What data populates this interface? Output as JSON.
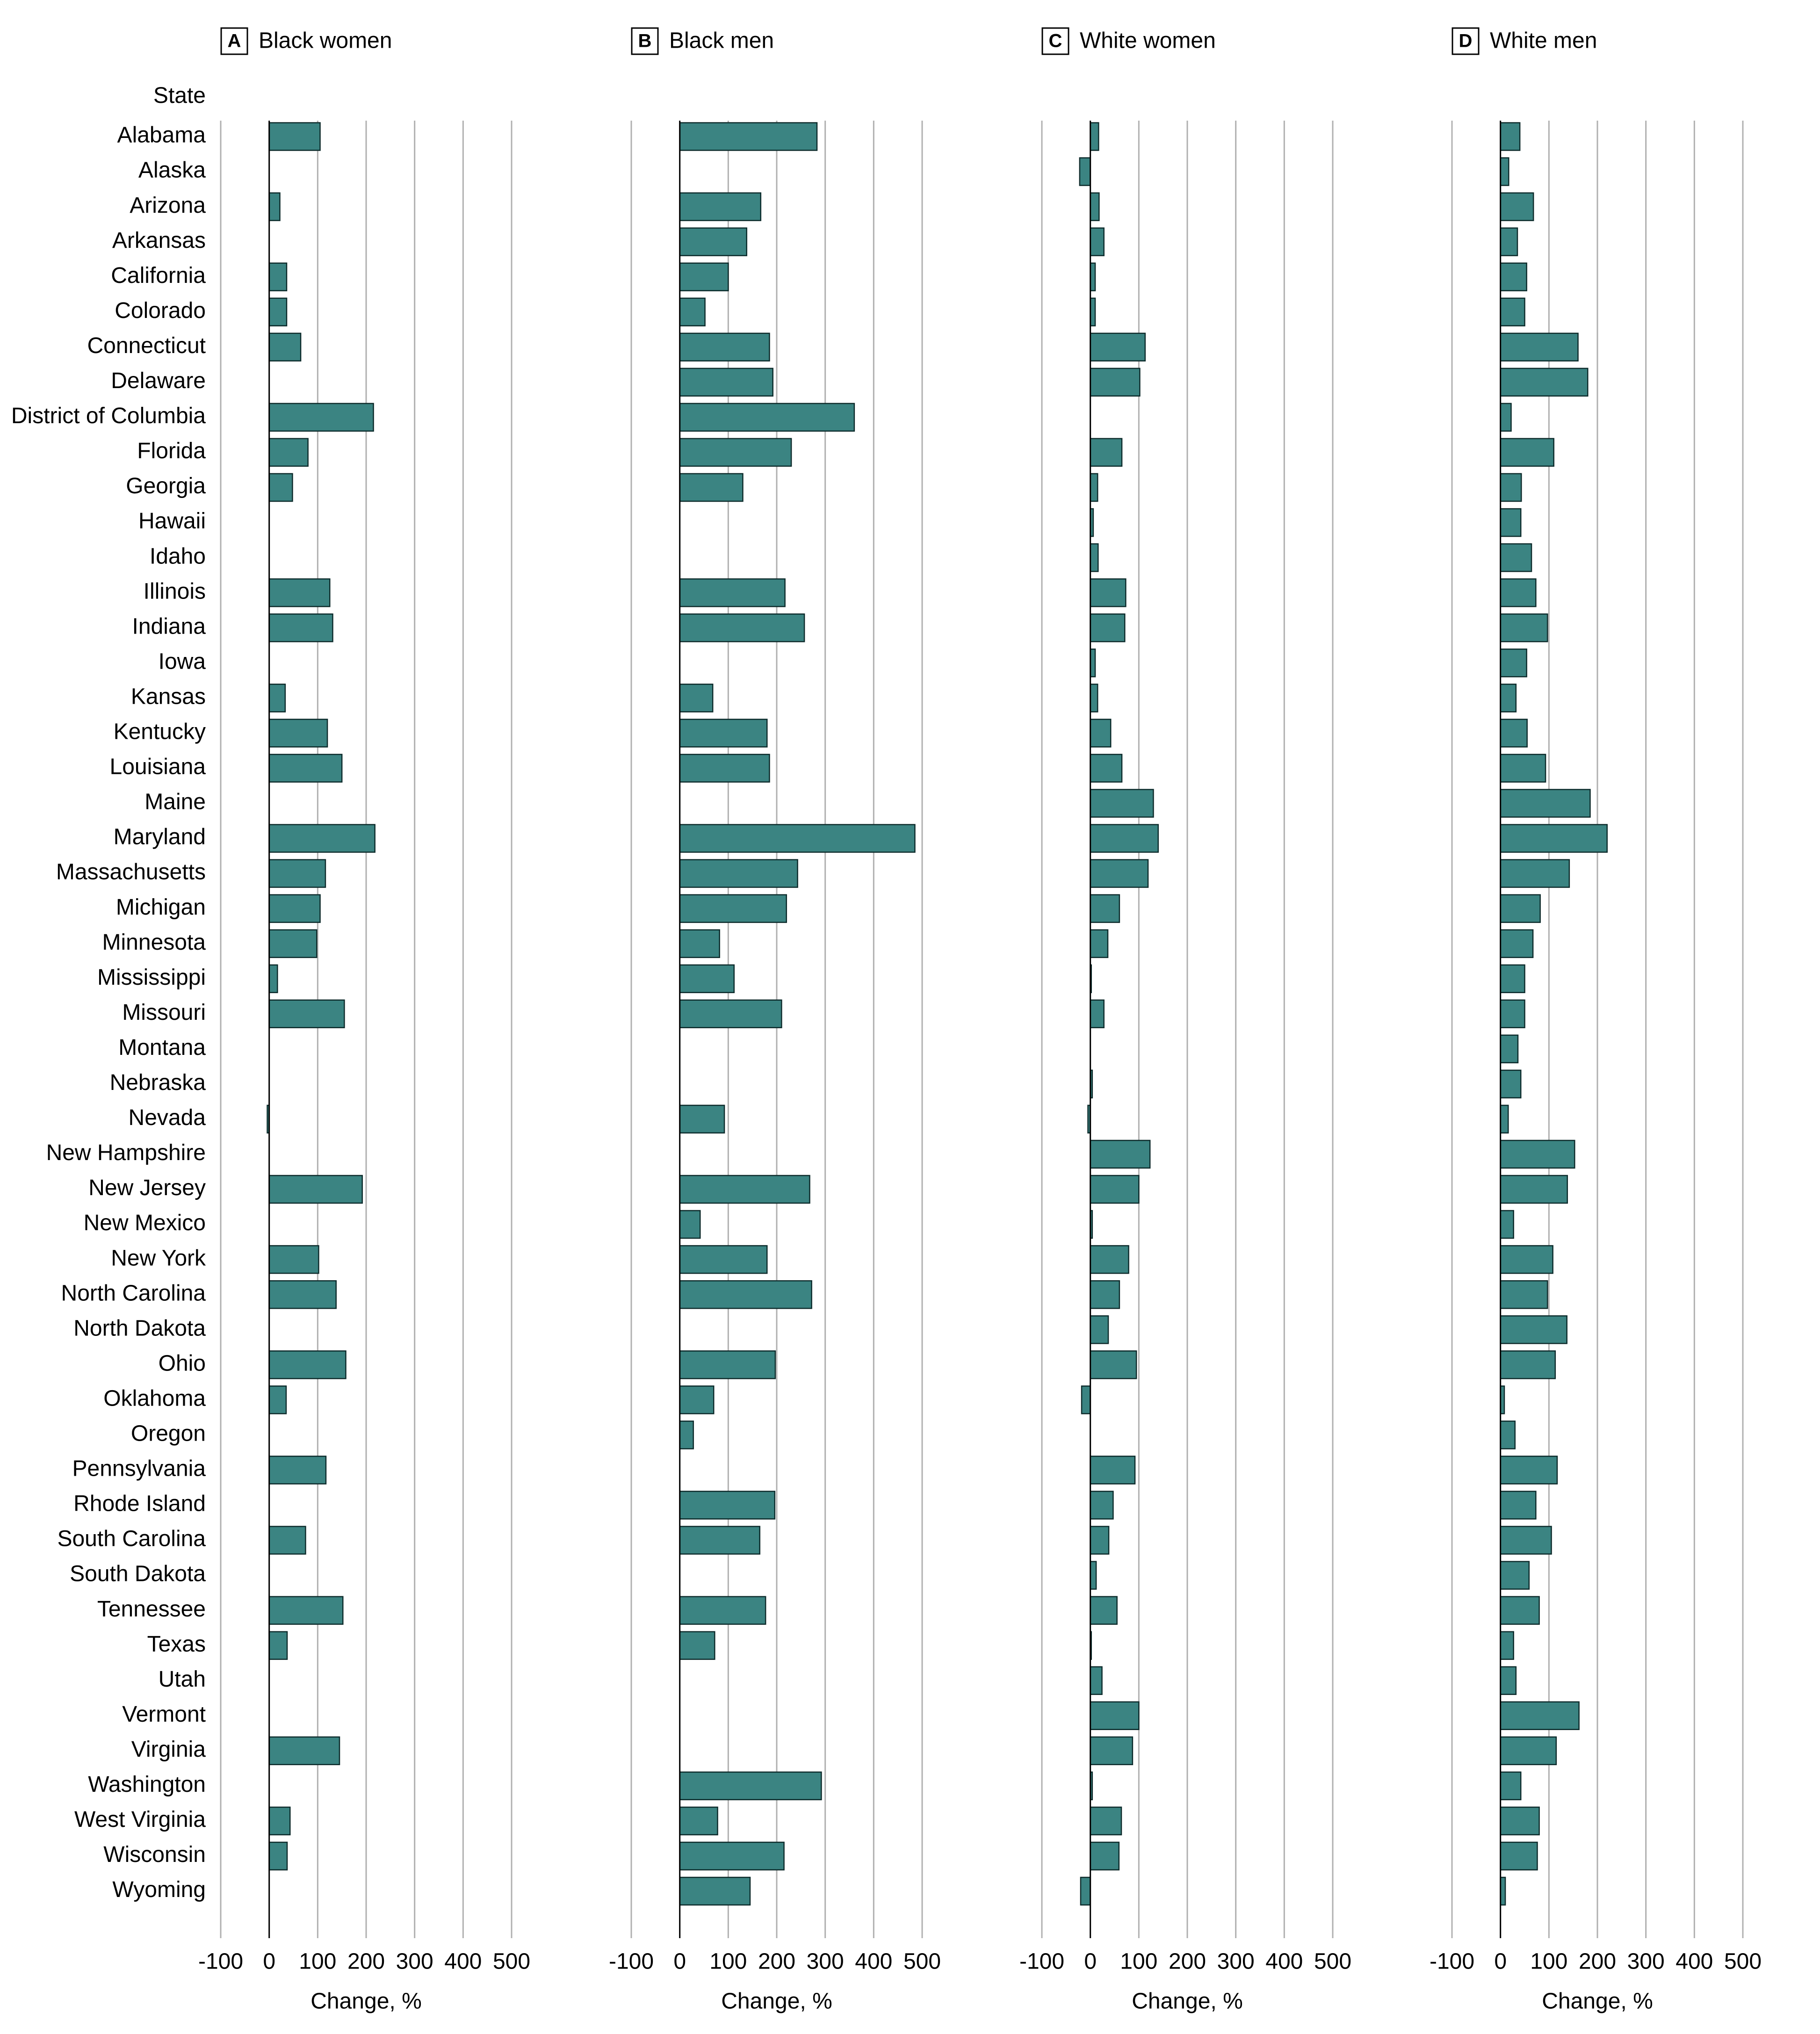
{
  "colors": {
    "bar": "#3b8482",
    "bar_stroke": "#0d2b2b",
    "grid": "#b0b0b0",
    "axis": "#000000",
    "text": "#000000"
  },
  "state_header": "State",
  "chart_data": [
    {
      "type": "bar",
      "orientation": "horizontal",
      "panel_letter": "A",
      "title": "Black women",
      "xlabel": "Change, %",
      "xlim": [
        -100,
        500
      ],
      "xticks": [
        -100,
        0,
        100,
        200,
        300,
        400,
        500
      ],
      "grid": true,
      "categories": [
        "Alabama",
        "Alaska",
        "Arizona",
        "Arkansas",
        "California",
        "Colorado",
        "Connecticut",
        "Delaware",
        "District of Columbia",
        "Florida",
        "Georgia",
        "Hawaii",
        "Idaho",
        "Illinois",
        "Indiana",
        "Iowa",
        "Kansas",
        "Kentucky",
        "Louisiana",
        "Maine",
        "Maryland",
        "Massachusetts",
        "Michigan",
        "Minnesota",
        "Mississippi",
        "Missouri",
        "Montana",
        "Nebraska",
        "Nevada",
        "New Hampshire",
        "New Jersey",
        "New Mexico",
        "New York",
        "North Carolina",
        "North Dakota",
        "Ohio",
        "Oklahoma",
        "Oregon",
        "Pennsylvania",
        "Rhode Island",
        "South Carolina",
        "South Dakota",
        "Tennessee",
        "Texas",
        "Utah",
        "Vermont",
        "Virginia",
        "Washington",
        "West Virginia",
        "Wisconsin",
        "Wyoming"
      ],
      "values": [
        105,
        null,
        22,
        null,
        36,
        36,
        65,
        null,
        215,
        80,
        48,
        null,
        null,
        125,
        131,
        null,
        33,
        120,
        150,
        null,
        218,
        116,
        105,
        98,
        17,
        155,
        null,
        null,
        -4,
        null,
        192,
        null,
        102,
        138,
        null,
        158,
        35,
        null,
        117,
        null,
        75,
        null,
        152,
        37,
        null,
        null,
        145,
        null,
        43,
        37,
        null
      ]
    },
    {
      "type": "bar",
      "orientation": "horizontal",
      "panel_letter": "B",
      "title": "Black men",
      "xlabel": "Change, %",
      "xlim": [
        -100,
        500
      ],
      "xticks": [
        -100,
        0,
        100,
        200,
        300,
        400,
        500
      ],
      "grid": true,
      "categories": [
        "Alabama",
        "Alaska",
        "Arizona",
        "Arkansas",
        "California",
        "Colorado",
        "Connecticut",
        "Delaware",
        "District of Columbia",
        "Florida",
        "Georgia",
        "Hawaii",
        "Idaho",
        "Illinois",
        "Indiana",
        "Iowa",
        "Kansas",
        "Kentucky",
        "Louisiana",
        "Maine",
        "Maryland",
        "Massachusetts",
        "Michigan",
        "Minnesota",
        "Mississippi",
        "Missouri",
        "Montana",
        "Nebraska",
        "Nevada",
        "New Hampshire",
        "New Jersey",
        "New Mexico",
        "New York",
        "North Carolina",
        "North Dakota",
        "Ohio",
        "Oklahoma",
        "Oregon",
        "Pennsylvania",
        "Rhode Island",
        "South Carolina",
        "South Dakota",
        "Tennessee",
        "Texas",
        "Utah",
        "Vermont",
        "Virginia",
        "Washington",
        "West Virginia",
        "Wisconsin",
        "Wyoming"
      ],
      "values": [
        283,
        null,
        167,
        138,
        100,
        52,
        185,
        192,
        360,
        230,
        130,
        null,
        null,
        217,
        257,
        null,
        68,
        180,
        185,
        null,
        485,
        243,
        220,
        82,
        112,
        210,
        null,
        null,
        92,
        null,
        268,
        42,
        180,
        272,
        null,
        197,
        70,
        28,
        null,
        196,
        165,
        null,
        177,
        72,
        null,
        null,
        null,
        292,
        78,
        215,
        145
      ]
    },
    {
      "type": "bar",
      "orientation": "horizontal",
      "panel_letter": "C",
      "title": "White women",
      "xlabel": "Change, %",
      "xlim": [
        -100,
        500
      ],
      "xticks": [
        -100,
        0,
        100,
        200,
        300,
        400,
        500
      ],
      "grid": true,
      "categories": [
        "Alabama",
        "Alaska",
        "Arizona",
        "Arkansas",
        "California",
        "Colorado",
        "Connecticut",
        "Delaware",
        "District of Columbia",
        "Florida",
        "Georgia",
        "Hawaii",
        "Idaho",
        "Illinois",
        "Indiana",
        "Iowa",
        "Kansas",
        "Kentucky",
        "Louisiana",
        "Maine",
        "Maryland",
        "Massachusetts",
        "Michigan",
        "Minnesota",
        "Mississippi",
        "Missouri",
        "Montana",
        "Nebraska",
        "Nevada",
        "New Hampshire",
        "New Jersey",
        "New Mexico",
        "New York",
        "North Carolina",
        "North Dakota",
        "Ohio",
        "Oklahoma",
        "Oregon",
        "Pennsylvania",
        "Rhode Island",
        "South Carolina",
        "South Dakota",
        "Tennessee",
        "Texas",
        "Utah",
        "Vermont",
        "Virginia",
        "Washington",
        "West Virginia",
        "Wisconsin",
        "Wyoming"
      ],
      "values": [
        17,
        -22,
        18,
        28,
        10,
        10,
        113,
        102,
        null,
        65,
        15,
        6,
        16,
        73,
        71,
        10,
        15,
        42,
        65,
        130,
        140,
        119,
        60,
        36,
        2,
        28,
        null,
        4,
        -5,
        123,
        100,
        4,
        79,
        60,
        37,
        95,
        -18,
        null,
        92,
        47,
        38,
        12,
        55,
        2,
        24,
        100,
        87,
        4,
        64,
        59,
        -20
      ]
    },
    {
      "type": "bar",
      "orientation": "horizontal",
      "panel_letter": "D",
      "title": "White men",
      "xlabel": "Change, %",
      "xlim": [
        -100,
        500
      ],
      "xticks": [
        -100,
        0,
        100,
        200,
        300,
        400,
        500
      ],
      "grid": true,
      "categories": [
        "Alabama",
        "Alaska",
        "Arizona",
        "Arkansas",
        "California",
        "Colorado",
        "Connecticut",
        "Delaware",
        "District of Columbia",
        "Florida",
        "Georgia",
        "Hawaii",
        "Idaho",
        "Illinois",
        "Indiana",
        "Iowa",
        "Kansas",
        "Kentucky",
        "Louisiana",
        "Maine",
        "Maryland",
        "Massachusetts",
        "Michigan",
        "Minnesota",
        "Mississippi",
        "Missouri",
        "Montana",
        "Nebraska",
        "Nevada",
        "New Hampshire",
        "New Jersey",
        "New Mexico",
        "New York",
        "North Carolina",
        "North Dakota",
        "Ohio",
        "Oklahoma",
        "Oregon",
        "Pennsylvania",
        "Rhode Island",
        "South Carolina",
        "South Dakota",
        "Tennessee",
        "Texas",
        "Utah",
        "Vermont",
        "Virginia",
        "Washington",
        "West Virginia",
        "Wisconsin",
        "Wyoming"
      ],
      "values": [
        40,
        17,
        68,
        35,
        54,
        50,
        160,
        180,
        22,
        110,
        43,
        42,
        64,
        73,
        97,
        54,
        32,
        55,
        93,
        185,
        220,
        142,
        82,
        67,
        50,
        50,
        36,
        42,
        16,
        153,
        138,
        27,
        108,
        97,
        137,
        113,
        8,
        30,
        117,
        73,
        105,
        59,
        80,
        27,
        32,
        162,
        115,
        42,
        80,
        76,
        10
      ]
    }
  ]
}
